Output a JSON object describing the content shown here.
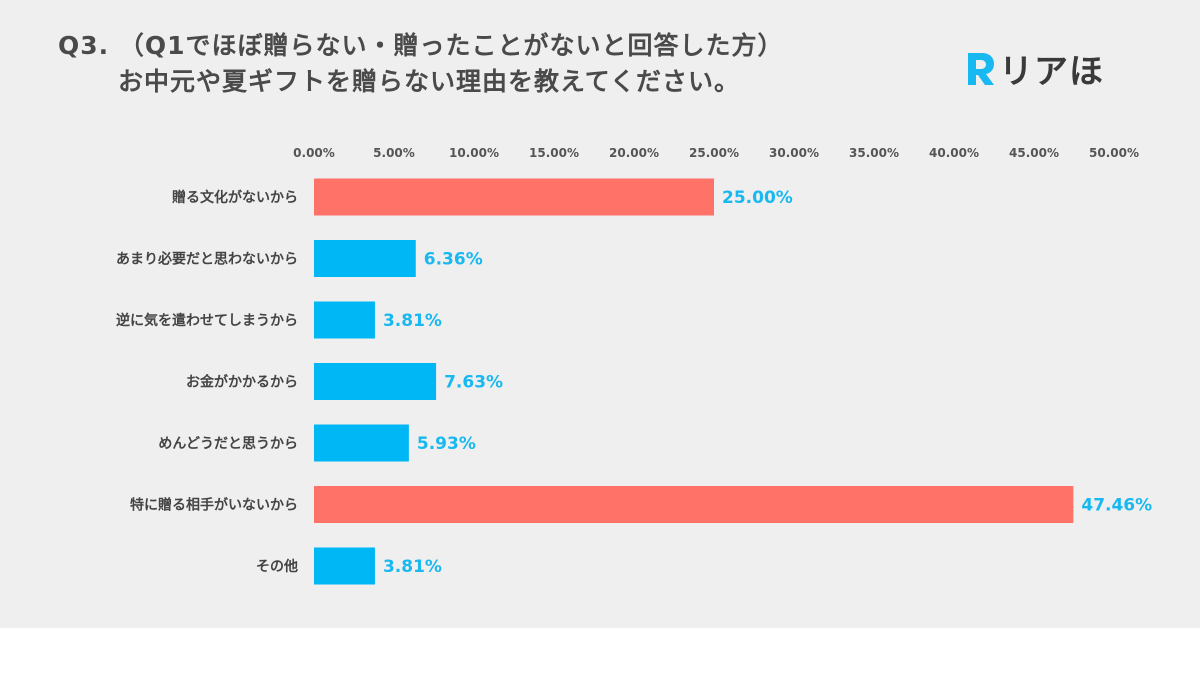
{
  "title": {
    "line1": "Q3. （Q1でほぼ贈らない・贈ったことがないと回答した方）",
    "line2": "お中元や夏ギフトを贈らない理由を教えてください。"
  },
  "logo": {
    "text": "リアほ",
    "mark_color": "#18b8f0"
  },
  "colors": {
    "highlight": "#ff7268",
    "normal": "#00b7f5",
    "value_label": "#18b8f0",
    "panel_bg": "#efefef"
  },
  "chart_data": {
    "type": "bar",
    "orientation": "horizontal",
    "categories": [
      "贈る文化がないから",
      "あまり必要だと思わないから",
      "逆に気を遣わせてしまうから",
      "お金がかかるから",
      "めんどうだと思うから",
      "特に贈る相手がいないから",
      "その他"
    ],
    "values": [
      25.0,
      6.36,
      3.81,
      7.63,
      5.93,
      47.46,
      3.81
    ],
    "value_labels": [
      "25.00%",
      "6.36%",
      "3.81%",
      "7.63%",
      "5.93%",
      "47.46%",
      "3.81%"
    ],
    "highlight": [
      true,
      false,
      false,
      false,
      false,
      true,
      false
    ],
    "xlim": [
      0,
      50
    ],
    "ticks": [
      0,
      5,
      10,
      15,
      20,
      25,
      30,
      35,
      40,
      45,
      50
    ],
    "tick_labels": [
      "0.00%",
      "5.00%",
      "10.00%",
      "15.00%",
      "20.00%",
      "25.00%",
      "30.00%",
      "35.00%",
      "40.00%",
      "45.00%",
      "50.00%"
    ],
    "tick_position": "top",
    "grid": false,
    "legend": "none"
  }
}
